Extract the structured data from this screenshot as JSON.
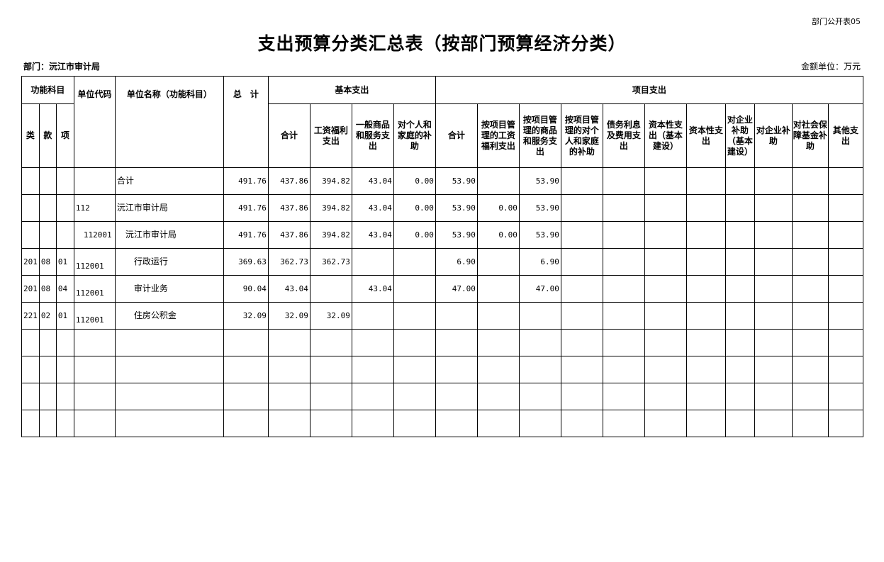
{
  "form_no": "部门公开表05",
  "title": "支出预算分类汇总表（按部门预算经济分类）",
  "department": "部门：沅江市审计局",
  "unit": "金额单位：万元",
  "headers": {
    "func": "功能科目",
    "lei": "类",
    "kuan": "款",
    "xiang": "项",
    "code": "单位代码",
    "name": "单位名称（功能科目）",
    "total": "总　计",
    "basic": "基本支出",
    "project": "项目支出",
    "basic_cols": [
      "合计",
      "工资福利支出",
      "一般商品和服务支出",
      "对个人和家庭的补助"
    ],
    "project_cols": [
      "合计",
      "按项目管理的工资福利支出",
      "按项目管理的商品和服务支出",
      "按项目管理的对个人和家庭的补助",
      "债务利息及费用支出",
      "资本性支出（基本建设）",
      "资本性支出",
      "对企业补助（基本建设）",
      "对企业补助",
      "对社会保障基金补助",
      "其他支出"
    ]
  },
  "rows": [
    {
      "lei": "",
      "kuan": "",
      "xiang": "",
      "code": "",
      "name": "合计",
      "indent": 0,
      "vals": [
        "491.76",
        "437.86",
        "394.82",
        "43.04",
        "0.00",
        "53.90",
        "",
        "53.90",
        "",
        "",
        "",
        "",
        "",
        "",
        "",
        ""
      ]
    },
    {
      "lei": "",
      "kuan": "",
      "xiang": "",
      "code": "112",
      "name": "沅江市审计局",
      "indent": 0,
      "vals": [
        "491.76",
        "437.86",
        "394.82",
        "43.04",
        "0.00",
        "53.90",
        "0.00",
        "53.90",
        "",
        "",
        "",
        "",
        "",
        "",
        "",
        ""
      ]
    },
    {
      "lei": "",
      "kuan": "",
      "xiang": "",
      "code": "112001",
      "name": "沅江市审计局",
      "indent": 1,
      "vals": [
        "491.76",
        "437.86",
        "394.82",
        "43.04",
        "0.00",
        "53.90",
        "0.00",
        "53.90",
        "",
        "",
        "",
        "",
        "",
        "",
        "",
        ""
      ]
    },
    {
      "lei": "201",
      "kuan": "08",
      "xiang": "01",
      "code": "112001",
      "name": "行政运行",
      "indent": 2,
      "vals": [
        "369.63",
        "362.73",
        "362.73",
        "",
        "",
        "6.90",
        "",
        "6.90",
        "",
        "",
        "",
        "",
        "",
        "",
        "",
        ""
      ]
    },
    {
      "lei": "201",
      "kuan": "08",
      "xiang": "04",
      "code": "112001",
      "name": "审计业务",
      "indent": 2,
      "vals": [
        "90.04",
        "43.04",
        "",
        "43.04",
        "",
        "47.00",
        "",
        "47.00",
        "",
        "",
        "",
        "",
        "",
        "",
        "",
        ""
      ]
    },
    {
      "lei": "221",
      "kuan": "02",
      "xiang": "01",
      "code": "112001",
      "name": "住房公积金",
      "indent": 2,
      "vals": [
        "32.09",
        "32.09",
        "32.09",
        "",
        "",
        "",
        "",
        "",
        "",
        "",
        "",
        "",
        "",
        "",
        "",
        ""
      ]
    },
    {
      "lei": "",
      "kuan": "",
      "xiang": "",
      "code": "",
      "name": "",
      "indent": 0,
      "vals": [
        "",
        "",
        "",
        "",
        "",
        "",
        "",
        "",
        "",
        "",
        "",
        "",
        "",
        "",
        "",
        ""
      ]
    },
    {
      "lei": "",
      "kuan": "",
      "xiang": "",
      "code": "",
      "name": "",
      "indent": 0,
      "vals": [
        "",
        "",
        "",
        "",
        "",
        "",
        "",
        "",
        "",
        "",
        "",
        "",
        "",
        "",
        "",
        ""
      ]
    },
    {
      "lei": "",
      "kuan": "",
      "xiang": "",
      "code": "",
      "name": "",
      "indent": 0,
      "vals": [
        "",
        "",
        "",
        "",
        "",
        "",
        "",
        "",
        "",
        "",
        "",
        "",
        "",
        "",
        "",
        ""
      ]
    },
    {
      "lei": "",
      "kuan": "",
      "xiang": "",
      "code": "",
      "name": "",
      "indent": 0,
      "vals": [
        "",
        "",
        "",
        "",
        "",
        "",
        "",
        "",
        "",
        "",
        "",
        "",
        "",
        "",
        "",
        ""
      ]
    }
  ]
}
